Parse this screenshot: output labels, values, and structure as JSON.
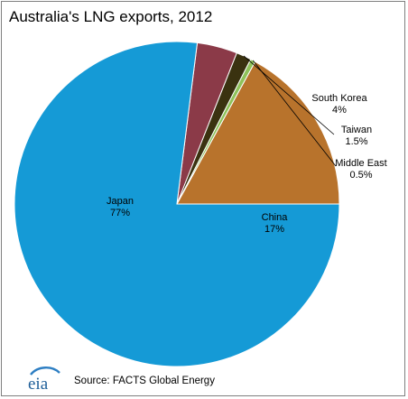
{
  "title": "Australia's LNG exports, 2012",
  "source": "Source: FACTS Global Energy",
  "logo_text": "eia",
  "chart_data": {
    "type": "pie",
    "title": "Australia's LNG exports, 2012",
    "start_angle_deg": 0,
    "direction": "counterclockwise",
    "slices": [
      {
        "label": "China",
        "value_label": "17%",
        "value": 17,
        "color": "#b8732c"
      },
      {
        "label": "Middle East",
        "value_label": "0.5%",
        "value": 0.5,
        "color": "#8fc25a"
      },
      {
        "label": "Taiwan",
        "value_label": "1.5%",
        "value": 1.5,
        "color": "#3a3210"
      },
      {
        "label": "South Korea",
        "value_label": "4%",
        "value": 4,
        "color": "#8b3a48"
      },
      {
        "label": "Japan",
        "value_label": "77%",
        "value": 77,
        "color": "#159ad6"
      }
    ]
  }
}
